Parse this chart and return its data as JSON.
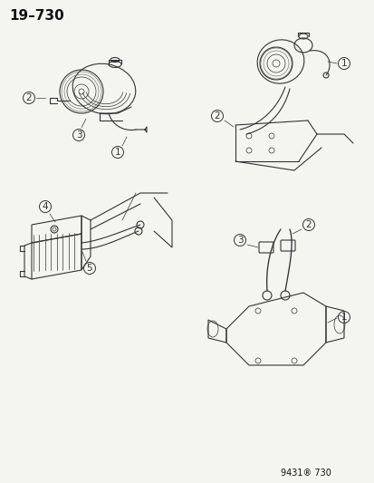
{
  "title": "19–730",
  "footer": "9431® 730",
  "bg_color": "#f5f5f0",
  "line_color": "#333333",
  "label_color": "#111111",
  "title_fontsize": 11,
  "footer_fontsize": 7,
  "label_fontsize": 7.5,
  "fig_width": 4.14,
  "fig_height": 5.33,
  "dpi": 100
}
